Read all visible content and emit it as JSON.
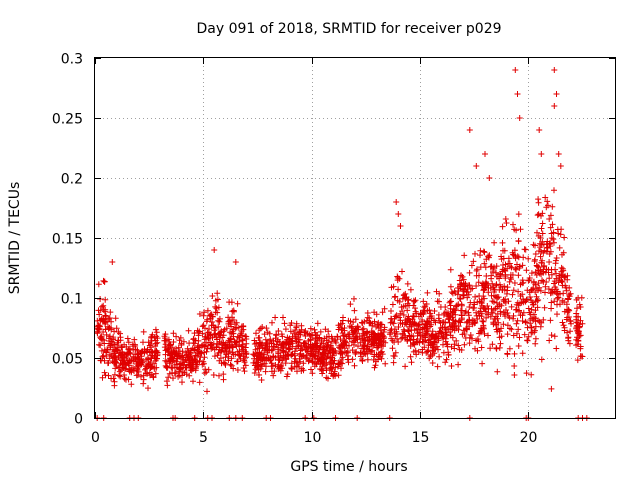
{
  "chart_data": {
    "type": "scatter",
    "title": "Day 091 of 2018, SRMTID for receiver p029",
    "xlabel": "GPS time / hours",
    "ylabel": "SRMTID / TECUs",
    "xlim": [
      0,
      24
    ],
    "ylim": [
      0,
      0.3
    ],
    "x_ticks": [
      0,
      5,
      10,
      15,
      20
    ],
    "x_tick_labels": [
      "0",
      "5",
      "10",
      "15",
      "20"
    ],
    "y_ticks": [
      0,
      0.05,
      0.1,
      0.15,
      0.2,
      0.25,
      0.3
    ],
    "y_tick_labels": [
      "0",
      "0.05",
      "0.1",
      "0.15",
      "0.2",
      "0.25",
      "0.3"
    ],
    "grid": true,
    "marker": "plus",
    "color": "#e00000",
    "series_name": "p029",
    "trend": [
      [
        0.0,
        0.085,
        0.03
      ],
      [
        0.5,
        0.07,
        0.025
      ],
      [
        1.0,
        0.055,
        0.018
      ],
      [
        1.5,
        0.05,
        0.015
      ],
      [
        2.0,
        0.045,
        0.012
      ],
      [
        2.5,
        0.05,
        0.015
      ],
      [
        3.0,
        0.055,
        0.015
      ],
      [
        3.5,
        0.05,
        0.014
      ],
      [
        4.0,
        0.05,
        0.014
      ],
      [
        4.5,
        0.05,
        0.014
      ],
      [
        5.0,
        0.06,
        0.02
      ],
      [
        5.5,
        0.075,
        0.025
      ],
      [
        6.0,
        0.06,
        0.018
      ],
      [
        6.5,
        0.07,
        0.022
      ],
      [
        7.0,
        0.055,
        0.015
      ],
      [
        7.5,
        0.05,
        0.014
      ],
      [
        8.0,
        0.06,
        0.016
      ],
      [
        8.5,
        0.055,
        0.015
      ],
      [
        9.0,
        0.06,
        0.015
      ],
      [
        9.5,
        0.06,
        0.015
      ],
      [
        10.0,
        0.06,
        0.014
      ],
      [
        10.5,
        0.055,
        0.014
      ],
      [
        11.0,
        0.05,
        0.014
      ],
      [
        11.5,
        0.065,
        0.016
      ],
      [
        12.0,
        0.07,
        0.017
      ],
      [
        12.5,
        0.065,
        0.016
      ],
      [
        13.0,
        0.065,
        0.016
      ],
      [
        13.5,
        0.07,
        0.018
      ],
      [
        14.0,
        0.09,
        0.03
      ],
      [
        14.5,
        0.075,
        0.022
      ],
      [
        15.0,
        0.075,
        0.02
      ],
      [
        15.5,
        0.07,
        0.02
      ],
      [
        16.0,
        0.075,
        0.022
      ],
      [
        16.5,
        0.08,
        0.025
      ],
      [
        17.0,
        0.095,
        0.035
      ],
      [
        17.5,
        0.09,
        0.03
      ],
      [
        18.0,
        0.1,
        0.035
      ],
      [
        18.5,
        0.09,
        0.03
      ],
      [
        19.0,
        0.11,
        0.04
      ],
      [
        19.5,
        0.11,
        0.045
      ],
      [
        20.0,
        0.1,
        0.04
      ],
      [
        20.5,
        0.12,
        0.05
      ],
      [
        21.0,
        0.13,
        0.055
      ],
      [
        21.5,
        0.12,
        0.04
      ],
      [
        22.0,
        0.08,
        0.02
      ],
      [
        22.5,
        0.07,
        0.02
      ]
    ],
    "spikes": [
      [
        13.9,
        0.18
      ],
      [
        14.0,
        0.17
      ],
      [
        14.1,
        0.16
      ],
      [
        17.3,
        0.24
      ],
      [
        17.6,
        0.21
      ],
      [
        18.0,
        0.22
      ],
      [
        18.2,
        0.2
      ],
      [
        19.4,
        0.29
      ],
      [
        19.5,
        0.27
      ],
      [
        19.6,
        0.25
      ],
      [
        20.5,
        0.24
      ],
      [
        20.6,
        0.22
      ],
      [
        21.2,
        0.29
      ],
      [
        21.3,
        0.27
      ],
      [
        21.2,
        0.26
      ],
      [
        21.4,
        0.22
      ],
      [
        21.5,
        0.21
      ],
      [
        5.5,
        0.14
      ],
      [
        6.5,
        0.13
      ],
      [
        0.8,
        0.13
      ]
    ],
    "gaps": [
      [
        2.9,
        3.2
      ],
      [
        7.0,
        7.3
      ],
      [
        13.4,
        13.6
      ],
      [
        22.0,
        22.2
      ]
    ],
    "zero_markers": [
      0.1,
      0.4,
      1.6,
      1.8,
      2.0,
      3.6,
      3.7,
      4.6,
      5.2,
      5.4,
      6.2,
      6.5,
      6.8,
      7.9,
      8.1,
      9.7,
      10.1,
      11.1,
      12.1,
      13.6,
      17.3,
      19.9,
      20.0,
      22.3,
      22.5,
      22.7
    ]
  }
}
